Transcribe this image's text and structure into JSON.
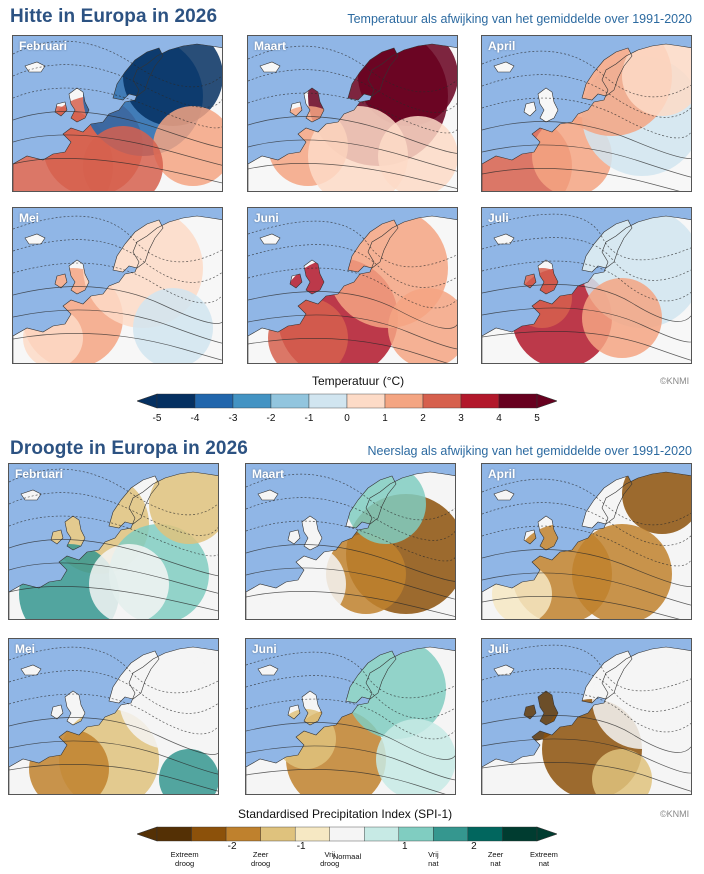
{
  "heat": {
    "title": "Hitte in Europa in 2026",
    "subtitle": "Temperatuur als afwijking van het gemiddelde over 1991-2020",
    "months": [
      "Februari",
      "Maart",
      "April",
      "Mei",
      "Juni",
      "Juli"
    ],
    "colorbar_title": "Temperatuur (°C)",
    "credit": "©KNMI",
    "ticks": [
      "-5",
      "-4",
      "-3",
      "-2",
      "-1",
      "0",
      "1",
      "2",
      "3",
      "4",
      "5"
    ],
    "colors": [
      "#053061",
      "#2166ac",
      "#4393c3",
      "#92c5de",
      "#d1e5f0",
      "#f7f7f7",
      "#fddbc7",
      "#f4a582",
      "#d6604d",
      "#b2182b",
      "#67001f"
    ]
  },
  "drought": {
    "title": "Droogte in Europa in 2026",
    "subtitle": "Neerslag als afwijking van het gemiddelde over 1991-2020",
    "months": [
      "Februari",
      "Maart",
      "April",
      "Mei",
      "Juni",
      "Juli"
    ],
    "colorbar_title": "Standardised Precipitation Index (SPI-1)",
    "credit": "©KNMI",
    "ticks": [
      "-2",
      "-1",
      "1",
      "2"
    ],
    "categories": [
      "Extreem droog",
      "Zeer droog",
      "Vrij droog",
      "Normaal",
      "Vrij nat",
      "Zeer nat",
      "Extreem nat"
    ],
    "colors": [
      "#543005",
      "#8c510a",
      "#bf812d",
      "#dfc27d",
      "#f6e8c3",
      "#f5f5f5",
      "#c7eae5",
      "#80cdc1",
      "#35978f",
      "#01665e",
      "#003c30"
    ]
  },
  "chart_data": [
    {
      "type": "heatmap",
      "title": "Hitte in Europa in 2026",
      "subtitle": "Temperatuur als afwijking van het gemiddelde over 1991-2020",
      "panels": [
        "Februari",
        "Maart",
        "April",
        "Mei",
        "Juni",
        "Juli"
      ],
      "colorbar": {
        "label": "Temperatuur (°C)",
        "ticks": [
          -5,
          -4,
          -3,
          -2,
          -1,
          0,
          1,
          2,
          3,
          4,
          5
        ],
        "range": [
          -5,
          5
        ]
      }
    },
    {
      "type": "heatmap",
      "title": "Droogte in Europa in 2026",
      "subtitle": "Neerslag als afwijking van het gemiddelde over 1991-2020",
      "panels": [
        "Februari",
        "Maart",
        "April",
        "Mei",
        "Juni",
        "Juli"
      ],
      "colorbar": {
        "label": "Standardised Precipitation Index (SPI-1)",
        "ticks": [
          -2,
          -1,
          1,
          2
        ],
        "categories": [
          "Extreem droog",
          "Zeer droog",
          "Vrij droog",
          "Normaal",
          "Vrij nat",
          "Zeer nat",
          "Extreem nat"
        ]
      }
    }
  ]
}
